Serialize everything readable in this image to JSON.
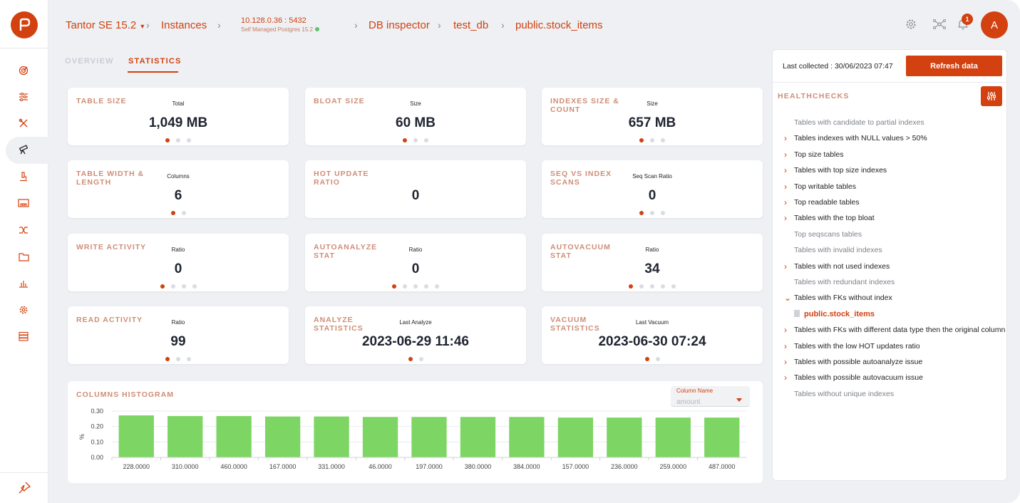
{
  "breadcrumb": {
    "product": "Tantor SE 15.2",
    "instances": "Instances",
    "host": "10.128.0.36 : 5432",
    "host_sub": "Self Managed Postgres 15.2",
    "inspector": "DB inspector",
    "database": "test_db",
    "table": "public.stock_items"
  },
  "header": {
    "notification_count": "1",
    "avatar_letter": "A"
  },
  "tabs": [
    {
      "label": "OVERVIEW"
    },
    {
      "label": "STATISTICS"
    }
  ],
  "cards": [
    {
      "title": "TABLE SIZE",
      "sub": "Total",
      "value": "1,049 MB",
      "dots": 3,
      "active": 0
    },
    {
      "title": "BLOAT SIZE",
      "sub": "Size",
      "value": "60 MB",
      "dots": 3,
      "active": 0
    },
    {
      "title": "INDEXES SIZE & COUNT",
      "sub": "Size",
      "value": "657 MB",
      "dots": 3,
      "active": 0
    },
    {
      "title": "TABLE WIDTH & LENGTH",
      "sub": "Columns",
      "value": "6",
      "dots": 2,
      "active": 0
    },
    {
      "title": "HOT UPDATE RATIO",
      "sub": "",
      "value": "0",
      "dots": 0,
      "active": 0
    },
    {
      "title": "SEQ VS INDEX SCANS",
      "sub": "Seq Scan Ratio",
      "value": "0",
      "dots": 3,
      "active": 0
    },
    {
      "title": "WRITE ACTIVITY",
      "sub": "Ratio",
      "value": "0",
      "dots": 4,
      "active": 0
    },
    {
      "title": "AUTOANALYZE STAT",
      "sub": "Ratio",
      "value": "0",
      "dots": 5,
      "active": 0
    },
    {
      "title": "AUTOVACUUM STAT",
      "sub": "Ratio",
      "value": "34",
      "dots": 5,
      "active": 0
    },
    {
      "title": "READ ACTIVITY",
      "sub": "Ratio",
      "value": "99",
      "dots": 3,
      "active": 0
    },
    {
      "title": "ANALYZE STATISTICS",
      "sub": "Last Analyze",
      "value": "2023-06-29 11:46",
      "dots": 2,
      "active": 0
    },
    {
      "title": "VACUUM STATISTICS",
      "sub": "Last Vacuum",
      "value": "2023-06-30 07:24",
      "dots": 2,
      "active": 0
    }
  ],
  "histogram": {
    "title": "COLUMNS HISTOGRAM",
    "column_label": "Column Name",
    "column_value": "amount"
  },
  "chart_data": {
    "type": "bar",
    "title": "COLUMNS HISTOGRAM",
    "xlabel": "",
    "ylabel": "%",
    "ylim": [
      0,
      0.3
    ],
    "yticks": [
      "0.30",
      "0.20",
      "0.10",
      "0.00"
    ],
    "categories": [
      "228.0000",
      "310.0000",
      "460.0000",
      "167.0000",
      "331.0000",
      "46.0000",
      "197.0000",
      "380.0000",
      "384.0000",
      "157.0000",
      "236.0000",
      "259.0000",
      "487.0000"
    ],
    "values": [
      0.272,
      0.268,
      0.268,
      0.265,
      0.265,
      0.262,
      0.262,
      0.262,
      0.262,
      0.258,
      0.258,
      0.258,
      0.258
    ],
    "bar_color": "#7dd563"
  },
  "panel": {
    "last_collected": "Last collected : 30/06/2023 07:47",
    "refresh_label": "Refresh data",
    "healthchecks_title": "HEALTHCHECKS",
    "items": [
      {
        "label": "Tables with candidate to partial indexes",
        "expandable": false
      },
      {
        "label": "Tables indexes with NULL values > 50%",
        "expandable": true
      },
      {
        "label": "Top size tables",
        "expandable": true
      },
      {
        "label": "Tables with top size indexes",
        "expandable": true
      },
      {
        "label": "Top writable tables",
        "expandable": true
      },
      {
        "label": "Top readable tables",
        "expandable": true
      },
      {
        "label": "Tables with the top bloat",
        "expandable": true
      },
      {
        "label": "Top seqscans tables",
        "expandable": false
      },
      {
        "label": "Tables with invalid indexes",
        "expandable": false
      },
      {
        "label": "Tables with not used indexes",
        "expandable": true
      },
      {
        "label": "Tables with redundant indexes",
        "expandable": false
      },
      {
        "label": "Tables with FKs without index",
        "expandable": true,
        "expanded": true,
        "child": "public.stock_items"
      },
      {
        "label": "Tables with FKs with different data type then the original column",
        "expandable": true
      },
      {
        "label": "Tables with the low HOT updates ratio",
        "expandable": true
      },
      {
        "label": "Tables with possible autoanalyze issue",
        "expandable": true
      },
      {
        "label": "Tables with possible autovacuum issue",
        "expandable": true
      },
      {
        "label": "Tables without unique indexes",
        "expandable": false
      }
    ]
  },
  "colors": {
    "accent": "#d2410f",
    "bar": "#7dd563",
    "bg": "#eef0f4"
  }
}
